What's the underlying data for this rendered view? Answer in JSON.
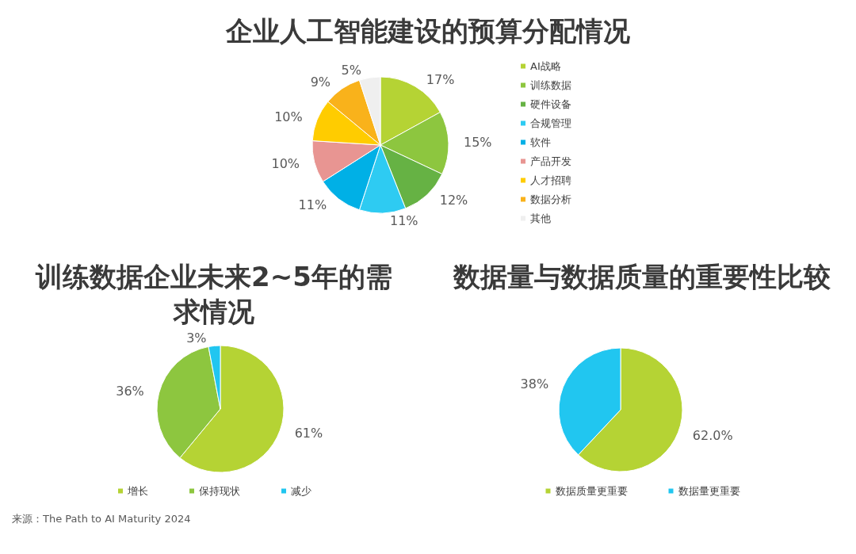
{
  "chart_data": [
    {
      "type": "pie",
      "title": "企业人工智能建设的预算分配情况",
      "categories": [
        "AI战略",
        "训练数据",
        "硬件设备",
        "合规管理",
        "软件",
        "产品开发",
        "人才招聘",
        "数据分析",
        "其他"
      ],
      "values": [
        17,
        15,
        12,
        11,
        11,
        10,
        10,
        9,
        5
      ],
      "colors": [
        "#b5d334",
        "#8dc63f",
        "#66b244",
        "#2ecbf2",
        "#00b0e6",
        "#e89592",
        "#ffcc00",
        "#f9b21b",
        "#efefef"
      ],
      "value_labels": [
        "17%",
        "15%",
        "12%",
        "11%",
        "11%",
        "10%",
        "10%",
        "9%",
        "5%"
      ],
      "legend": "right"
    },
    {
      "type": "pie",
      "title": "训练数据企业未来2~5年的需求情况",
      "categories": [
        "增长",
        "保持现状",
        "减少"
      ],
      "values": [
        61,
        36,
        3
      ],
      "colors": [
        "#b5d334",
        "#8dc63f",
        "#21c6f0"
      ],
      "value_labels": [
        "61%",
        "36%",
        "3%"
      ],
      "legend": "bottom",
      "annotations": [
        "来源：The Path to AI Maturity 2024"
      ]
    },
    {
      "type": "pie",
      "title": "数据量与数据质量的重要性比较",
      "categories": [
        "数据质量更重要",
        "数据量更重要"
      ],
      "values": [
        62,
        38
      ],
      "colors": [
        "#b5d334",
        "#21c6f0"
      ],
      "value_labels": [
        "62.0%",
        "38%"
      ],
      "legend": "bottom"
    }
  ]
}
